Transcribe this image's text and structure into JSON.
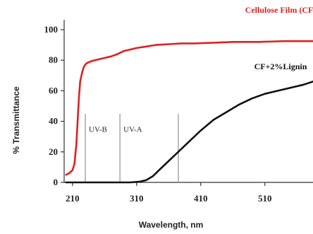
{
  "chart_data": {
    "type": "line",
    "xlabel": "Wavelength, nm",
    "ylabel": "% Transmittance",
    "xlim": [
      197,
      585
    ],
    "ylim": [
      0,
      100
    ],
    "xticks": [
      210,
      310,
      410,
      510
    ],
    "yticks": [
      0,
      20,
      40,
      60,
      80,
      100
    ],
    "grid": false,
    "series": [
      {
        "name": "Cellulose Film (CF)",
        "color": "#e02020",
        "x": [
          200,
          205,
          210,
          213,
          216,
          218,
          220,
          222,
          225,
          228,
          232,
          240,
          250,
          260,
          270,
          280,
          290,
          300,
          310,
          325,
          340,
          360,
          380,
          400,
          430,
          460,
          500,
          540,
          585
        ],
        "y": [
          5,
          6,
          8,
          12,
          25,
          40,
          55,
          66,
          72,
          76,
          78,
          79.5,
          80.5,
          81.5,
          82.5,
          84,
          86,
          87,
          88,
          89,
          90,
          90.5,
          91,
          91,
          91.5,
          92,
          92,
          92.5,
          92.5
        ]
      },
      {
        "name": "CF+2%Lignin",
        "color": "#111111",
        "x": [
          200,
          250,
          300,
          315,
          325,
          335,
          345,
          355,
          365,
          375,
          390,
          410,
          430,
          450,
          470,
          490,
          510,
          530,
          550,
          570,
          585
        ],
        "y": [
          0,
          0,
          0,
          0.5,
          1.5,
          4,
          8,
          12,
          16,
          20,
          26,
          34,
          41,
          46,
          51,
          55,
          58,
          60,
          62,
          64,
          66
        ]
      }
    ],
    "regions": [
      {
        "label": "UV-B",
        "from": 230,
        "to": 284
      },
      {
        "label": "UV-A",
        "from": 284,
        "to": 375
      }
    ]
  }
}
